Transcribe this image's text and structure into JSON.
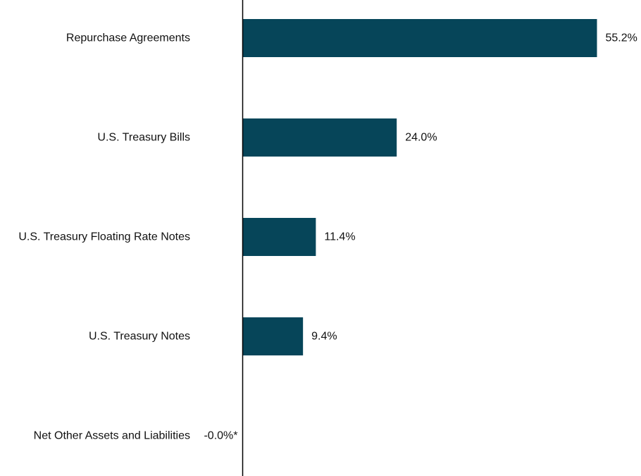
{
  "chart_data": {
    "type": "bar",
    "orientation": "horizontal",
    "categories": [
      "Repurchase Agreements",
      "U.S. Treasury Bills",
      "U.S. Treasury Floating Rate Notes",
      "U.S. Treasury Notes",
      "Net Other Assets and Liabilities"
    ],
    "values": [
      55.2,
      24.0,
      11.4,
      9.4,
      -0.0
    ],
    "value_labels": [
      "55.2%",
      "24.0%",
      "11.4%",
      "9.4%",
      "-0.0%*"
    ],
    "xlim": [
      0,
      60
    ],
    "grid": false,
    "legend": "none",
    "bar_color": "#064559",
    "axis_color": "#000000",
    "title": "",
    "xlabel": "",
    "ylabel": ""
  }
}
